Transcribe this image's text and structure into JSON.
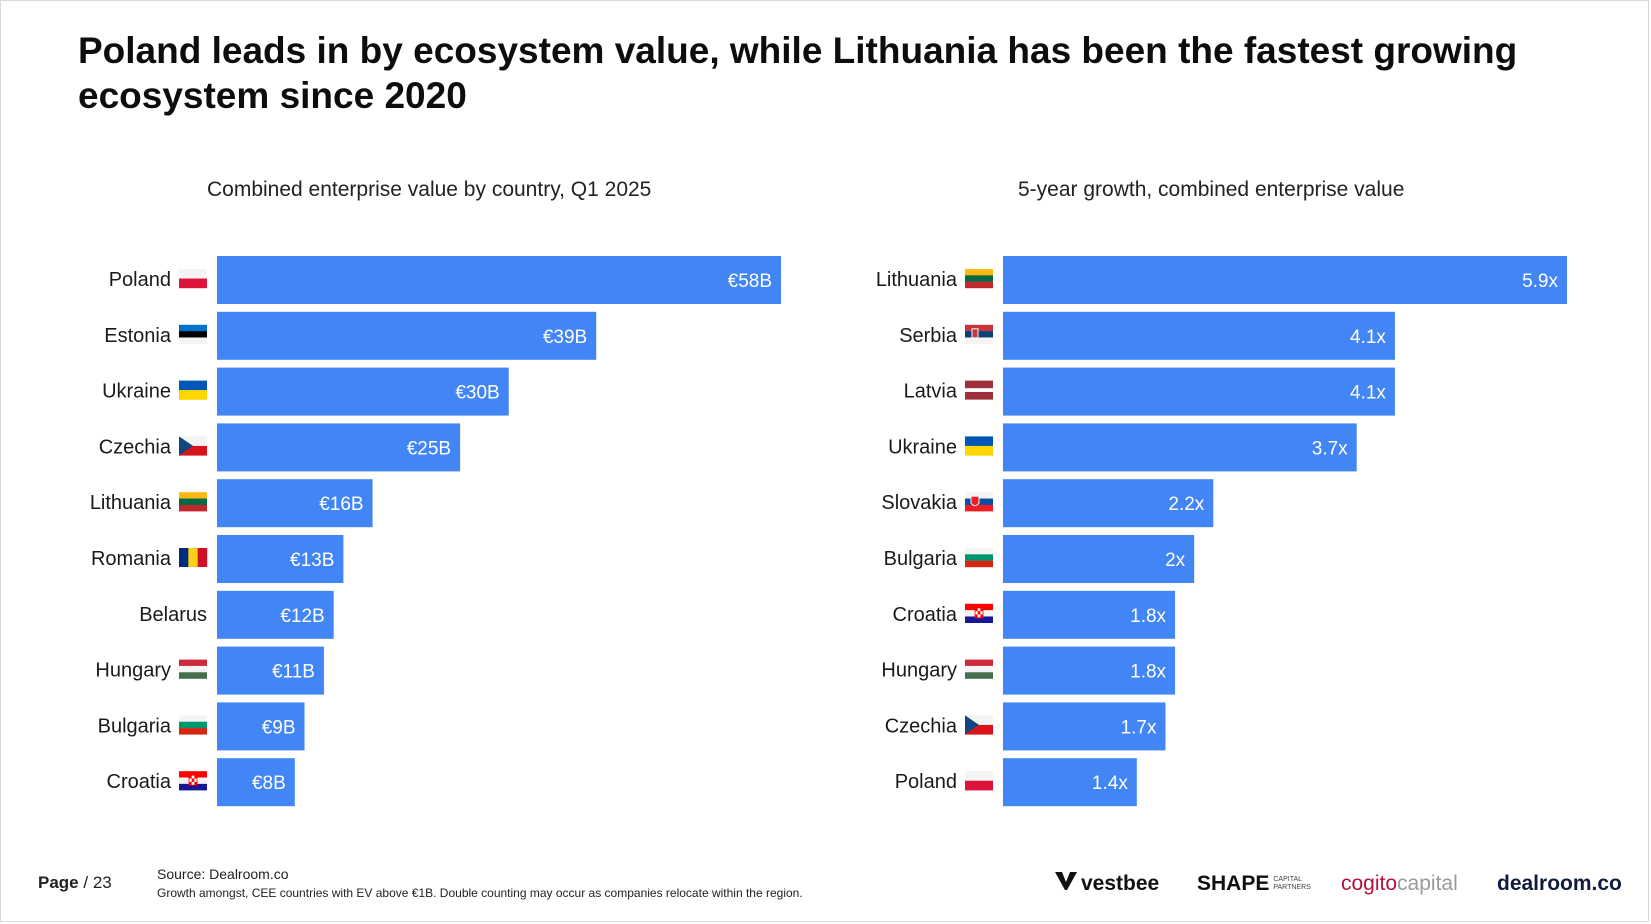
{
  "title": "Poland leads in by ecosystem value, while Lithuania has been the fastest growing ecosystem since 2020",
  "colors": {
    "bar": "#4285f4",
    "bar_label": "#ffffff"
  },
  "chart_data": [
    {
      "type": "bar",
      "orientation": "horizontal",
      "title": "Combined enterprise value by country, Q1 2025",
      "unit": "€B",
      "categories": [
        "Poland",
        "Estonia",
        "Ukraine",
        "Czechia",
        "Lithuania",
        "Romania",
        "Belarus",
        "Hungary",
        "Bulgaria",
        "Croatia"
      ],
      "values": [
        58,
        39,
        30,
        25,
        16,
        13,
        12,
        11,
        9,
        8
      ],
      "value_labels": [
        "€58B",
        "€39B",
        "€30B",
        "€25B",
        "€16B",
        "€13B",
        "€12B",
        "€11B",
        "€9B",
        "€8B"
      ],
      "flags": [
        "poland-flag",
        "estonia-flag",
        "ukraine-flag",
        "czechia-flag",
        "lithuania-flag",
        "romania-flag",
        "",
        "hungary-flag",
        "bulgaria-flag",
        "croatia-flag"
      ],
      "xlim": [
        0,
        58
      ]
    },
    {
      "type": "bar",
      "orientation": "horizontal",
      "title": "5-year growth, combined enterprise value",
      "unit": "x",
      "categories": [
        "Lithuania",
        "Serbia",
        "Latvia",
        "Ukraine",
        "Slovakia",
        "Bulgaria",
        "Croatia",
        "Hungary",
        "Czechia",
        "Poland"
      ],
      "values": [
        5.9,
        4.1,
        4.1,
        3.7,
        2.2,
        2.0,
        1.8,
        1.8,
        1.7,
        1.4
      ],
      "value_labels": [
        "5.9x",
        "4.1x",
        "4.1x",
        "3.7x",
        "2.2x",
        "2x",
        "1.8x",
        "1.8x",
        "1.7x",
        "1.4x"
      ],
      "flags": [
        "lithuania-flag",
        "serbia-flag",
        "latvia-flag",
        "ukraine-flag",
        "slovakia-flag",
        "bulgaria-flag",
        "croatia-flag",
        "hungary-flag",
        "czechia-flag",
        "poland-flag"
      ],
      "xlim": [
        0,
        5.9
      ]
    }
  ],
  "footer": {
    "page_label": "Page",
    "page_number": "/ 23",
    "source": "Source:  Dealroom.co",
    "note": "Growth amongst, CEE countries with EV above €1B. Double counting may occur as companies relocate within the region."
  },
  "logos": {
    "vestbee": "vestbee",
    "shape": "SHAPE",
    "shape_sub1": "CAPITAL",
    "shape_sub2": "PARTNERS",
    "cogito_a": "cogito",
    "cogito_b": "capital",
    "dealroom": "dealroom.co"
  }
}
